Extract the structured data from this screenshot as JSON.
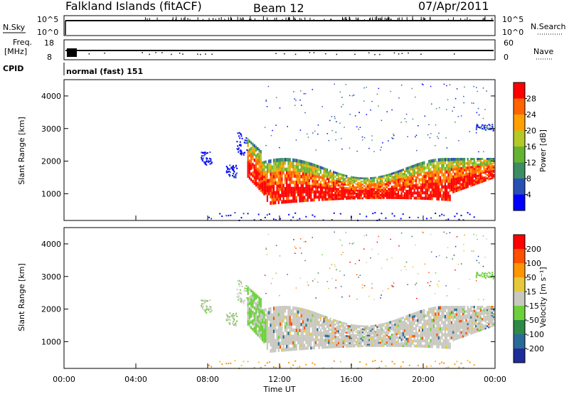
{
  "header": {
    "station": "Falkland Islands (fitACF)",
    "beam": "Beam 12",
    "date": "07/Apr/2011"
  },
  "sky_panel": {
    "left_label": "N.Sky",
    "right_label": "N.Search",
    "ticks": [
      "10^5",
      "10^0"
    ]
  },
  "freq_panel": {
    "left_label_1": "Freq.",
    "left_label_2": "[MHz]",
    "right_label": "Nave",
    "left_ticks": [
      "18",
      "8"
    ],
    "right_ticks": [
      "60",
      "0"
    ]
  },
  "cpid": {
    "label": "CPID",
    "mode": "normal (fast) 151"
  },
  "colors": {
    "power": [
      "#0000ff",
      "#2850b4",
      "#3c8c64",
      "#64b432",
      "#b4c828",
      "#ffa000",
      "#ff6400",
      "#ff0000"
    ],
    "velocity": [
      "#1e2d9a",
      "#2a6a9a",
      "#2e8a46",
      "#6cd03c",
      "#c8c8c0",
      "#e6c83c",
      "#ff9600",
      "#ff5000",
      "#ff0000"
    ]
  },
  "chart_data": [
    {
      "type": "heatmap",
      "name": "Power",
      "ylabel": "Slant Range [km]",
      "ylim": [
        180,
        4500
      ],
      "y_ticks": [
        "1000",
        "2000",
        "3000",
        "4000"
      ],
      "y_tick_values": [
        1000,
        2000,
        3000,
        4000
      ],
      "colorbar_label": "Power [dB]",
      "colorbar_ticks": [
        "28",
        "24",
        "20",
        "16",
        "12",
        "8",
        "4"
      ],
      "colorbar_values": [
        28,
        24,
        20,
        16,
        12,
        8,
        4
      ]
    },
    {
      "type": "heatmap",
      "name": "Velocity",
      "ylabel": "Slant Range [km]",
      "ylim": [
        180,
        4500
      ],
      "y_ticks": [
        "1000",
        "2000",
        "3000",
        "4000"
      ],
      "y_tick_values": [
        1000,
        2000,
        3000,
        4000
      ],
      "colorbar_label": "Velocity [m s⁻¹]",
      "colorbar_ticks": [
        "200",
        "100",
        "50",
        "15",
        "-15",
        "-50",
        "-100",
        "-200"
      ],
      "colorbar_values": [
        200,
        100,
        50,
        15,
        -15,
        -50,
        -100,
        -200
      ]
    }
  ],
  "x_axis": {
    "label": "Time UT",
    "ticks": [
      "00:00",
      "04:00",
      "08:00",
      "12:00",
      "16:00",
      "20:00",
      "00:00"
    ],
    "tick_hours": [
      0,
      4,
      8,
      12,
      16,
      20,
      24
    ]
  }
}
